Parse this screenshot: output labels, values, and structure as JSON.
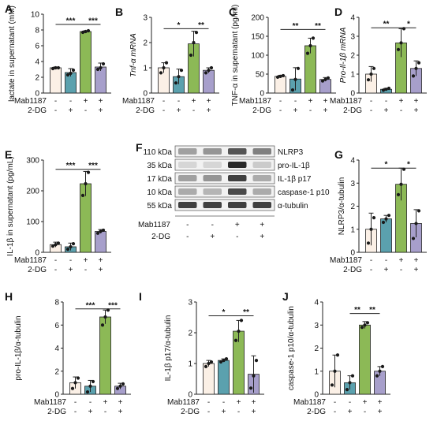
{
  "figure": {
    "colors": {
      "control": "#fbf0e6",
      "dg": "#5ba1ae",
      "mab": "#8cb956",
      "mabdg": "#a79fcb",
      "dot": "#1a1a1a",
      "axis": "#222222"
    },
    "group_rows": [
      {
        "label": "Mab1187",
        "marks": [
          "-",
          "-",
          "+",
          "+"
        ]
      },
      {
        "label": "2-DG",
        "marks": [
          "-",
          "+",
          "-",
          "+"
        ]
      }
    ]
  },
  "chart_data": [
    {
      "panel": "A",
      "type": "bar",
      "ylabel": "lactate in supernatant (mM)",
      "ylim": [
        0,
        10
      ],
      "yticks": [
        "0",
        "2",
        "4",
        "6",
        "8",
        "10"
      ],
      "values": [
        3.2,
        2.6,
        7.8,
        3.3
      ],
      "errors": [
        0.1,
        0.5,
        0.1,
        0.5
      ],
      "points": [
        [
          3.1,
          3.2,
          3.2
        ],
        [
          2.3,
          2.5,
          2.9
        ],
        [
          7.7,
          7.8,
          7.9
        ],
        [
          3.0,
          3.2,
          3.7
        ]
      ],
      "sig": [
        {
          "from": 0,
          "to": 2,
          "label": "***",
          "y": 8.7
        },
        {
          "from": 2,
          "to": 3,
          "label": "***",
          "y": 8.7
        }
      ]
    },
    {
      "panel": "B",
      "type": "bar",
      "ylabel": "Tnf-α mRNA",
      "ylim": [
        0,
        3
      ],
      "yticks": [
        "0",
        "1",
        "2",
        "3"
      ],
      "values": [
        1.0,
        0.65,
        1.95,
        0.9
      ],
      "errors": [
        0.2,
        0.3,
        0.5,
        0.1
      ],
      "points": [
        [
          0.8,
          1.0,
          1.2
        ],
        [
          0.4,
          0.65,
          0.9
        ],
        [
          1.5,
          2.0,
          2.4
        ],
        [
          0.8,
          0.9,
          1.0
        ]
      ],
      "sig": [
        {
          "from": 0,
          "to": 2,
          "label": "*",
          "y": 2.55
        },
        {
          "from": 2,
          "to": 3,
          "label": "**",
          "y": 2.55
        }
      ]
    },
    {
      "panel": "C",
      "type": "bar",
      "ylabel": "TNF-α in supernatant (pg/ml)",
      "ylim": [
        0,
        200
      ],
      "yticks": [
        "0",
        "50",
        "100",
        "150",
        "200"
      ],
      "values": [
        44,
        37,
        125,
        36
      ],
      "errors": [
        3,
        30,
        20,
        5
      ],
      "points": [
        [
          42,
          44,
          46
        ],
        [
          8,
          36,
          65
        ],
        [
          105,
          125,
          145
        ],
        [
          32,
          36,
          40
        ]
      ],
      "sig": [
        {
          "from": 0,
          "to": 2,
          "label": "**",
          "y": 168
        },
        {
          "from": 2,
          "to": 3,
          "label": "**",
          "y": 168
        }
      ]
    },
    {
      "panel": "D",
      "type": "bar",
      "ylabel": "Pro-Il-1β mRNA",
      "ylim": [
        0,
        4
      ],
      "yticks": [
        "0",
        "1",
        "2",
        "3",
        "4"
      ],
      "values": [
        1.0,
        0.2,
        2.65,
        1.3
      ],
      "errors": [
        0.4,
        0.05,
        0.75,
        0.4
      ],
      "points": [
        [
          0.7,
          1.0,
          1.3
        ],
        [
          0.15,
          0.2,
          0.25
        ],
        [
          2.3,
          2.65,
          3.4
        ],
        [
          0.9,
          1.3,
          1.6
        ]
      ],
      "sig": [
        {
          "from": 0,
          "to": 2,
          "label": "**",
          "y": 3.45
        },
        {
          "from": 2,
          "to": 3,
          "label": "*",
          "y": 3.45
        }
      ]
    },
    {
      "panel": "E",
      "type": "bar",
      "ylabel": "IL-1β in supernatant (pg/mL)",
      "ylim": [
        0,
        300
      ],
      "yticks": [
        "0",
        "100",
        "200",
        "300"
      ],
      "values": [
        25,
        18,
        223,
        68
      ],
      "errors": [
        8,
        12,
        40,
        6
      ],
      "points": [
        [
          20,
          25,
          30
        ],
        [
          10,
          18,
          28
        ],
        [
          185,
          223,
          260
        ],
        [
          62,
          68,
          72
        ]
      ],
      "sig": [
        {
          "from": 0,
          "to": 2,
          "label": "***",
          "y": 270
        },
        {
          "from": 2,
          "to": 3,
          "label": "***",
          "y": 270
        }
      ]
    },
    {
      "panel": "G",
      "type": "bar",
      "ylabel": "NLRP3/α-tubulin",
      "ylim": [
        0,
        4
      ],
      "yticks": [
        "0",
        "1",
        "2",
        "3",
        "4"
      ],
      "values": [
        1.0,
        1.45,
        2.95,
        1.25
      ],
      "errors": [
        0.7,
        0.15,
        0.7,
        0.6
      ],
      "points": [
        [
          0.4,
          1.0,
          1.5
        ],
        [
          1.3,
          1.45,
          1.6
        ],
        [
          2.5,
          2.95,
          3.6
        ],
        [
          0.6,
          1.25,
          1.8
        ]
      ],
      "sig": [
        {
          "from": 0,
          "to": 2,
          "label": "*",
          "y": 3.65
        },
        {
          "from": 2,
          "to": 3,
          "label": "*",
          "y": 3.65
        }
      ]
    },
    {
      "panel": "H",
      "type": "bar",
      "ylabel": "pro-IL-1β/α-tubulin",
      "ylim": [
        0,
        8
      ],
      "yticks": [
        "0",
        "2",
        "4",
        "6",
        "8"
      ],
      "values": [
        1.0,
        0.7,
        6.7,
        0.7
      ],
      "errors": [
        0.5,
        0.5,
        0.6,
        0.25
      ],
      "points": [
        [
          0.5,
          1.0,
          1.4
        ],
        [
          0.2,
          0.7,
          1.1
        ],
        [
          6.0,
          6.7,
          7.3
        ],
        [
          0.5,
          0.7,
          0.9
        ]
      ],
      "sig": [
        {
          "from": 0,
          "to": 2,
          "label": "***",
          "y": 7.4
        },
        {
          "from": 2,
          "to": 3,
          "label": "***",
          "y": 7.4
        }
      ]
    },
    {
      "panel": "I",
      "type": "bar",
      "ylabel": "IL-1β p17/α-tubulin",
      "ylim": [
        0,
        3
      ],
      "yticks": [
        "0",
        "1",
        "2",
        "3"
      ],
      "values": [
        1.0,
        1.1,
        2.05,
        0.65
      ],
      "errors": [
        0.1,
        0.05,
        0.35,
        0.6
      ],
      "points": [
        [
          0.9,
          1.0,
          1.05
        ],
        [
          1.05,
          1.1,
          1.15
        ],
        [
          1.75,
          2.05,
          2.4
        ],
        [
          0.2,
          0.6,
          1.1
        ]
      ],
      "sig": [
        {
          "from": 0,
          "to": 2,
          "label": "*",
          "y": 2.55
        },
        {
          "from": 2,
          "to": 3,
          "label": "**",
          "y": 2.55
        }
      ]
    },
    {
      "panel": "J",
      "type": "bar",
      "ylabel": "caspase-1 p10/α-tubulin",
      "ylim": [
        0,
        4
      ],
      "yticks": [
        "0",
        "1",
        "2",
        "3",
        "4"
      ],
      "values": [
        1.0,
        0.5,
        3.0,
        1.0
      ],
      "errors": [
        0.7,
        0.3,
        0.15,
        0.2
      ],
      "points": [
        [
          0.4,
          1.0,
          1.7
        ],
        [
          0.2,
          0.5,
          0.8
        ],
        [
          2.9,
          3.0,
          3.1
        ],
        [
          0.8,
          1.0,
          1.2
        ]
      ],
      "sig": [
        {
          "from": 1,
          "to": 2,
          "label": "**",
          "y": 3.5
        },
        {
          "from": 2,
          "to": 3,
          "label": "**",
          "y": 3.5
        }
      ]
    }
  ],
  "western_blot": {
    "panel": "F",
    "bands": [
      {
        "kda": "110 kDa",
        "protein": "NLRP3",
        "intensity": [
          0.35,
          0.4,
          0.7,
          0.5
        ]
      },
      {
        "kda": "35 kDa",
        "protein": "pro-IL-1β",
        "intensity": [
          0.1,
          0.1,
          0.9,
          0.15
        ]
      },
      {
        "kda": "17 kDa",
        "protein": "IL-1β p17",
        "intensity": [
          0.35,
          0.4,
          0.8,
          0.3
        ]
      },
      {
        "kda": "10 kDa",
        "protein": "caspase-1 p10",
        "intensity": [
          0.3,
          0.25,
          0.75,
          0.3
        ]
      },
      {
        "kda": "55 kDa",
        "protein": "α-tubulin",
        "intensity": [
          0.8,
          0.8,
          0.8,
          0.8
        ]
      }
    ]
  }
}
